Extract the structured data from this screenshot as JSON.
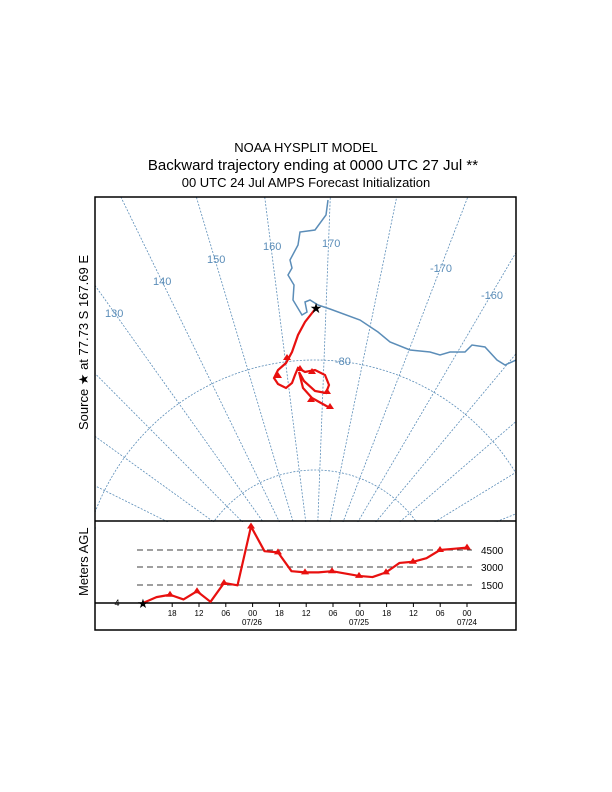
{
  "header": {
    "line1": "NOAA HYSPLIT MODEL",
    "line2": "Backward trajectory ending at 0000 UTC 27 Jul **",
    "line3": "00 UTC 24 Jul    AMPS  Forecast Initialization"
  },
  "map": {
    "source_label": "Source ★ at  77.73 S  167.69 E",
    "meridian_labels": [
      "130",
      "140",
      "150",
      "160",
      "170",
      "-170",
      "-160"
    ],
    "parallel_label": "-80"
  },
  "colors": {
    "trajectory": "#e8100f",
    "map": "#5b8db8"
  },
  "chart_data": {
    "type": "line",
    "title": "Backward trajectory ending at 0000 UTC 27 Jul",
    "ylabel": "Meters AGL",
    "y_ticks": [
      "4500",
      "3000",
      "1500"
    ],
    "x_ticks": [
      "18",
      "12",
      "06",
      "00",
      "18",
      "12",
      "06",
      "00",
      "18",
      "12",
      "06",
      "00"
    ],
    "date_labels": [
      "07/26",
      "07/25",
      "07/24"
    ],
    "left_tick": "4",
    "hours_back": [
      0,
      3,
      6,
      9,
      12,
      15,
      18,
      21,
      24,
      27,
      30,
      33,
      36,
      39,
      42,
      45,
      48,
      51,
      54,
      57,
      60,
      63,
      66,
      69,
      72
    ],
    "height_m": [
      0,
      500,
      700,
      300,
      1000,
      100,
      1700,
      1500,
      6500,
      4400,
      4300,
      2700,
      2600,
      2600,
      2700,
      2500,
      2300,
      2200,
      2600,
      3400,
      3500,
      3800,
      4500,
      4600,
      4700
    ]
  }
}
